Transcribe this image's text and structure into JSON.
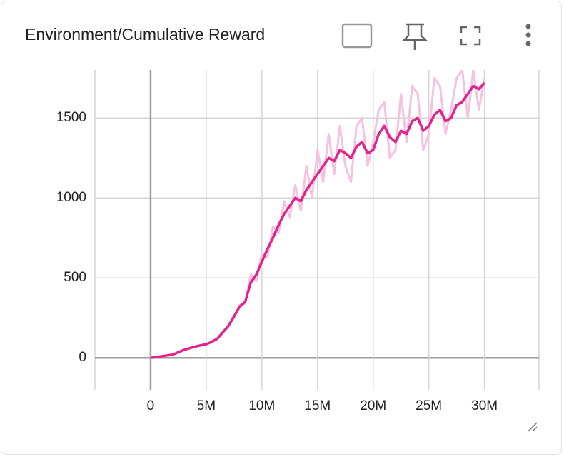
{
  "chart_data": {
    "type": "line",
    "title": "Environment/Cumulative Reward",
    "x": [
      0,
      500000,
      1000000,
      1500000,
      2000000,
      2500000,
      3000000,
      3500000,
      4000000,
      4500000,
      5000000,
      5500000,
      6000000,
      6500000,
      7000000,
      7500000,
      8000000,
      8500000,
      9000000,
      9500000,
      10000000,
      10500000,
      11000000,
      11500000,
      12000000,
      12500000,
      13000000,
      13500000,
      14000000,
      14500000,
      15000000,
      15500000,
      16000000,
      16500000,
      17000000,
      17500000,
      18000000,
      18500000,
      19000000,
      19500000,
      20000000,
      20500000,
      21000000,
      21500000,
      22000000,
      22500000,
      23000000,
      23500000,
      24000000,
      24500000,
      25000000,
      25500000,
      26000000,
      26500000,
      27000000,
      27500000,
      28000000,
      28500000,
      29000000,
      29500000,
      30000000
    ],
    "series": [
      {
        "color": "#f5c2df",
        "values": [
          0,
          5,
          10,
          15,
          20,
          35,
          50,
          60,
          70,
          78,
          85,
          100,
          120,
          165,
          205,
          250,
          330,
          340,
          520,
          480,
          650,
          630,
          820,
          780,
          980,
          880,
          1080,
          920,
          1200,
          1000,
          1300,
          1100,
          1400,
          1150,
          1450,
          1200,
          1100,
          1450,
          1500,
          1200,
          1350,
          1550,
          1600,
          1250,
          1300,
          1650,
          1350,
          1700,
          1650,
          1300,
          1400,
          1750,
          1700,
          1400,
          1550,
          1750,
          1800,
          1500,
          1800,
          1550,
          1750
        ]
      },
      {
        "color": "#e3238b",
        "values": [
          0,
          5,
          10,
          15,
          20,
          35,
          50,
          60,
          70,
          78,
          85,
          100,
          120,
          160,
          200,
          260,
          320,
          350,
          470,
          520,
          600,
          680,
          750,
          830,
          900,
          950,
          1000,
          980,
          1050,
          1100,
          1150,
          1200,
          1250,
          1230,
          1300,
          1280,
          1250,
          1320,
          1350,
          1280,
          1300,
          1400,
          1450,
          1380,
          1350,
          1420,
          1400,
          1480,
          1500,
          1420,
          1450,
          1520,
          1550,
          1480,
          1500,
          1580,
          1600,
          1650,
          1700,
          1680,
          1720
        ]
      }
    ],
    "xlim": [
      -5000000,
      34900000
    ],
    "ylim": [
      -200,
      1800
    ],
    "xticks": [
      {
        "value": 0,
        "label": "0"
      },
      {
        "value": 5000000,
        "label": "5M"
      },
      {
        "value": 10000000,
        "label": "10M"
      },
      {
        "value": 15000000,
        "label": "15M"
      },
      {
        "value": 20000000,
        "label": "20M"
      },
      {
        "value": 25000000,
        "label": "25M"
      },
      {
        "value": 30000000,
        "label": "30M"
      }
    ],
    "yticks": [
      0,
      500,
      1000,
      1500
    ],
    "grid": true
  }
}
